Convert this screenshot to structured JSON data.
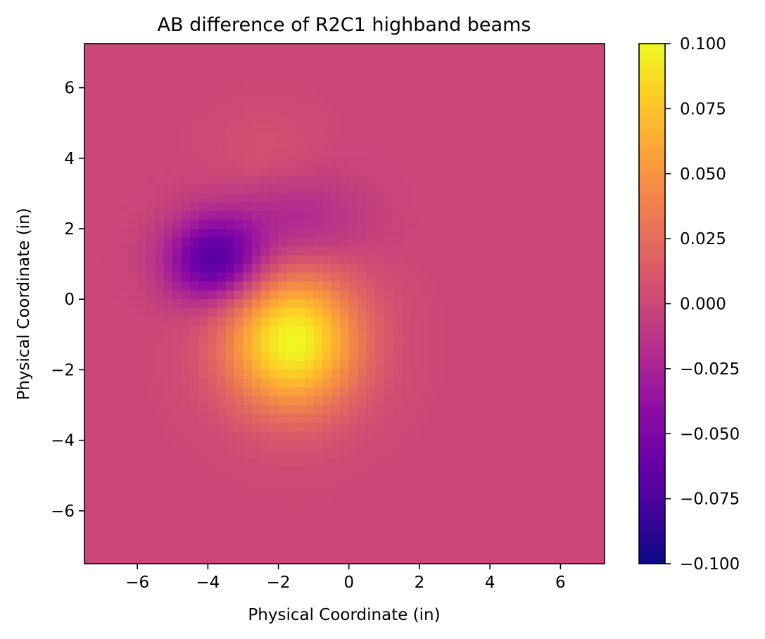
{
  "chart_data": {
    "type": "heatmap",
    "title": "AB difference of R2C1 highband beams",
    "xlabel": "Physical Coordinate (in)",
    "ylabel": "Physical Coordinate (in)",
    "xlim": [
      -7.5,
      7.25
    ],
    "ylim": [
      -7.5,
      7.25
    ],
    "xticks": [
      -6,
      -4,
      -2,
      0,
      2,
      4,
      6
    ],
    "xtick_labels": [
      "−6",
      "−4",
      "−2",
      "0",
      "2",
      "4",
      "6"
    ],
    "yticks": [
      -6,
      -4,
      -2,
      0,
      2,
      4,
      6
    ],
    "ytick_labels": [
      "−6",
      "−4",
      "−2",
      "0",
      "2",
      "4",
      "6"
    ],
    "grid": false,
    "grid_size": [
      59,
      59
    ],
    "colormap": "plasma",
    "colorbar": {
      "vmin": -0.1,
      "vmax": 0.1,
      "ticks": [
        0.1,
        0.075,
        0.05,
        0.025,
        0.0,
        -0.025,
        -0.05,
        -0.075,
        -0.1
      ],
      "tick_labels": [
        "0.100",
        "0.075",
        "0.050",
        "0.025",
        "0.000",
        "−0.025",
        "−0.050",
        "−0.075",
        "−0.100"
      ]
    },
    "background_value": 0.0,
    "features": [
      {
        "kind": "peak",
        "x": -1.6,
        "y": -1.2,
        "amplitude": 0.1,
        "sigma_x": 1.3,
        "sigma_y": 1.35
      },
      {
        "kind": "trough",
        "x": -3.8,
        "y": 1.1,
        "amplitude": -0.072,
        "sigma_x": 0.95,
        "sigma_y": 0.85
      },
      {
        "kind": "trough",
        "x": -1.5,
        "y": 2.2,
        "amplitude": -0.022,
        "sigma_x": 1.4,
        "sigma_y": 0.9
      },
      {
        "kind": "peak",
        "x": -2.4,
        "y": 4.2,
        "amplitude": 0.008,
        "sigma_x": 1.0,
        "sigma_y": 0.8
      }
    ]
  }
}
